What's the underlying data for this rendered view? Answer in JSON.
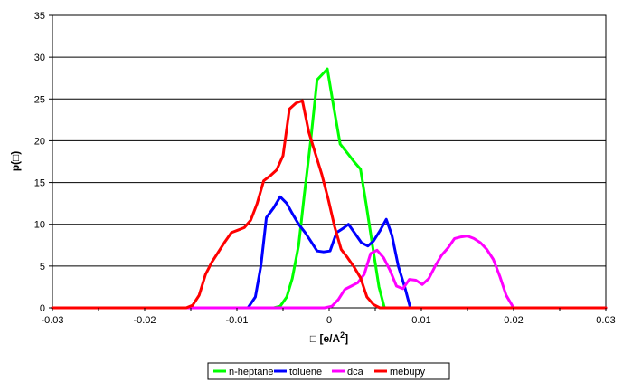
{
  "chart_data": {
    "type": "line",
    "title": "",
    "xlabel": "□ [e/A",
    "xlabel_sup": "2",
    "xlabel_end": "]",
    "ylabel": "p(□)",
    "xlim": [
      -0.03,
      0.03
    ],
    "ylim": [
      0,
      35
    ],
    "x_ticks": [
      -0.03,
      -0.02,
      -0.01,
      0,
      0.01,
      0.02,
      0.03
    ],
    "x_tick_labels": [
      "-0.03",
      "-0.02",
      "-0.01",
      "0",
      "0.01",
      "0.02",
      "0.03"
    ],
    "y_ticks": [
      0,
      5,
      10,
      15,
      20,
      25,
      30,
      35
    ],
    "y_tick_labels": [
      "0",
      "5",
      "10",
      "15",
      "20",
      "25",
      "30",
      "35"
    ],
    "grid": "horizontal",
    "legend_position": "bottom",
    "series": [
      {
        "name": "n-heptane",
        "color": "#00ff00",
        "points": [
          [
            -0.03,
            0
          ],
          [
            -0.006,
            0
          ],
          [
            -0.0053,
            0.2
          ],
          [
            -0.0046,
            1.3
          ],
          [
            -0.004,
            3.5
          ],
          [
            -0.0033,
            7.5
          ],
          [
            -0.0027,
            13.5
          ],
          [
            -0.002,
            20
          ],
          [
            -0.0013,
            27.3
          ],
          [
            -0.0007,
            28
          ],
          [
            -0.0002,
            28.6
          ],
          [
            0.0005,
            24
          ],
          [
            0.0012,
            19.6
          ],
          [
            0.002,
            18.5
          ],
          [
            0.0027,
            17.5
          ],
          [
            0.0034,
            16.6
          ],
          [
            0.004,
            12.5
          ],
          [
            0.0047,
            7.5
          ],
          [
            0.0054,
            2.5
          ],
          [
            0.006,
            0
          ],
          [
            0.03,
            0
          ]
        ]
      },
      {
        "name": "toluene",
        "color": "#0000ff",
        "points": [
          [
            -0.03,
            0
          ],
          [
            -0.0088,
            0
          ],
          [
            -0.008,
            1.3
          ],
          [
            -0.0074,
            5
          ],
          [
            -0.0068,
            10.8
          ],
          [
            -0.006,
            12
          ],
          [
            -0.0053,
            13.3
          ],
          [
            -0.0046,
            12.5
          ],
          [
            -0.004,
            11.3
          ],
          [
            -0.0033,
            10
          ],
          [
            -0.0026,
            9
          ],
          [
            -0.002,
            8
          ],
          [
            -0.0013,
            6.8
          ],
          [
            -0.0006,
            6.7
          ],
          [
            0.0001,
            6.8
          ],
          [
            0.0008,
            9
          ],
          [
            0.0015,
            9.5
          ],
          [
            0.0021,
            10
          ],
          [
            0.0028,
            8.9
          ],
          [
            0.0035,
            7.8
          ],
          [
            0.0042,
            7.4
          ],
          [
            0.0048,
            8
          ],
          [
            0.0055,
            9.2
          ],
          [
            0.0062,
            10.6
          ],
          [
            0.0068,
            8.7
          ],
          [
            0.0075,
            5
          ],
          [
            0.0082,
            2.5
          ],
          [
            0.0088,
            0
          ],
          [
            0.03,
            0
          ]
        ]
      },
      {
        "name": "dca",
        "color": "#ff00ff",
        "points": [
          [
            -0.03,
            0
          ],
          [
            -0.0005,
            0
          ],
          [
            0.0003,
            0.2
          ],
          [
            0.001,
            1
          ],
          [
            0.0017,
            2.2
          ],
          [
            0.0024,
            2.6
          ],
          [
            0.0031,
            3
          ],
          [
            0.0038,
            4
          ],
          [
            0.0045,
            6.5
          ],
          [
            0.0052,
            6.9
          ],
          [
            0.0059,
            6
          ],
          [
            0.0066,
            4.5
          ],
          [
            0.0073,
            2.6
          ],
          [
            0.008,
            2.3
          ],
          [
            0.0087,
            3.4
          ],
          [
            0.0094,
            3.3
          ],
          [
            0.0101,
            2.8
          ],
          [
            0.0108,
            3.5
          ],
          [
            0.0115,
            5
          ],
          [
            0.0122,
            6.3
          ],
          [
            0.0129,
            7.2
          ],
          [
            0.0136,
            8.3
          ],
          [
            0.0143,
            8.5
          ],
          [
            0.015,
            8.6
          ],
          [
            0.0157,
            8.3
          ],
          [
            0.0164,
            7.8
          ],
          [
            0.0171,
            7
          ],
          [
            0.0178,
            5.8
          ],
          [
            0.0185,
            3.8
          ],
          [
            0.0192,
            1.5
          ],
          [
            0.02,
            0
          ],
          [
            0.03,
            0
          ]
        ]
      },
      {
        "name": "mebupy",
        "color": "#ff0000",
        "points": [
          [
            -0.03,
            0
          ],
          [
            -0.0155,
            0
          ],
          [
            -0.0148,
            0.3
          ],
          [
            -0.0141,
            1.5
          ],
          [
            -0.0134,
            4
          ],
          [
            -0.0127,
            5.5
          ],
          [
            -0.012,
            6.7
          ],
          [
            -0.0113,
            7.9
          ],
          [
            -0.0106,
            9
          ],
          [
            -0.0099,
            9.3
          ],
          [
            -0.0092,
            9.6
          ],
          [
            -0.0085,
            10.5
          ],
          [
            -0.0078,
            12.5
          ],
          [
            -0.0071,
            15.2
          ],
          [
            -0.0064,
            15.8
          ],
          [
            -0.0057,
            16.5
          ],
          [
            -0.005,
            18.2
          ],
          [
            -0.0043,
            23.8
          ],
          [
            -0.0036,
            24.5
          ],
          [
            -0.0029,
            24.8
          ],
          [
            -0.0022,
            21
          ],
          [
            -0.0015,
            18.5
          ],
          [
            -0.0008,
            16
          ],
          [
            -0.0001,
            13
          ],
          [
            0.0006,
            9.7
          ],
          [
            0.0013,
            7
          ],
          [
            0.002,
            6
          ],
          [
            0.0027,
            4.9
          ],
          [
            0.0034,
            3.6
          ],
          [
            0.0041,
            1.3
          ],
          [
            0.0048,
            0.4
          ],
          [
            0.0055,
            0
          ],
          [
            0.03,
            0
          ]
        ]
      }
    ]
  }
}
